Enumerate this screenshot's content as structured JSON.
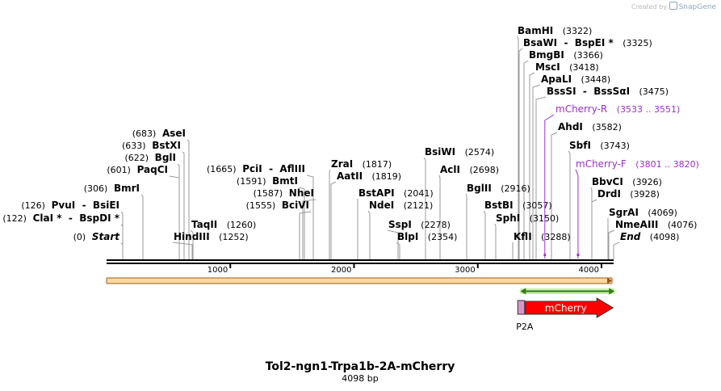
{
  "credit": {
    "prefix": "Created by",
    "brand": "SnapGene"
  },
  "title": "Tol2-ngn1-Trpa1b-2A-mCherry",
  "length_label": "4098 bp",
  "sequence_length": 4098,
  "ticks": [
    {
      "pos": 1000,
      "label": "1000"
    },
    {
      "pos": 2000,
      "label": "2000"
    },
    {
      "pos": 3000,
      "label": "3000"
    },
    {
      "pos": 4000,
      "label": "4000"
    }
  ],
  "colors": {
    "site_line": "#999999",
    "primer": "#9b30c8",
    "backbone_fill": "#f9d9a0",
    "backbone_line": "#a05a1a",
    "primer_bar": "#2e7d1e",
    "primer_bar_fill": "#c9f29a",
    "mcherry": "#ff0000",
    "p2a": "#d995c8"
  },
  "sites": [
    {
      "pos": 0,
      "names": [
        "Start"
      ],
      "coord": "(0)",
      "italic": true
    },
    {
      "pos": 122,
      "names": [
        "ClaI *",
        "BspDI *"
      ],
      "coord": "(122)"
    },
    {
      "pos": 126,
      "names": [
        "PvuI",
        "BsiEI"
      ],
      "coord": "(126)"
    },
    {
      "pos": 306,
      "names": [
        "BmrI"
      ],
      "coord": "(306)"
    },
    {
      "pos": 601,
      "names": [
        "PaqCI"
      ],
      "coord": "(601)"
    },
    {
      "pos": 622,
      "names": [
        "BglI"
      ],
      "coord": "(622)"
    },
    {
      "pos": 633,
      "names": [
        "BstXI"
      ],
      "coord": "(633)"
    },
    {
      "pos": 683,
      "names": [
        "AseI"
      ],
      "coord": "(683)"
    },
    {
      "pos": 1252,
      "names": [
        "HindIII"
      ],
      "coord": "(1252)"
    },
    {
      "pos": 1260,
      "names": [
        "TaqII"
      ],
      "coord": "(1260)"
    },
    {
      "pos": 1555,
      "names": [
        "BciVI"
      ],
      "coord": "(1555)"
    },
    {
      "pos": 1587,
      "names": [
        "NheI"
      ],
      "coord": "(1587)"
    },
    {
      "pos": 1591,
      "names": [
        "BmtI"
      ],
      "coord": "(1591)"
    },
    {
      "pos": 1665,
      "names": [
        "PciI",
        "AflIII"
      ],
      "coord": "(1665)"
    },
    {
      "pos": 1817,
      "names": [
        "ZraI"
      ],
      "coord": "(1817)"
    },
    {
      "pos": 1819,
      "names": [
        "AatII"
      ],
      "coord": "(1819)"
    },
    {
      "pos": 2041,
      "names": [
        "BstAPI"
      ],
      "coord": "(2041)"
    },
    {
      "pos": 2121,
      "names": [
        "NdeI"
      ],
      "coord": "(2121)"
    },
    {
      "pos": 2278,
      "names": [
        "SspI"
      ],
      "coord": "(2278)"
    },
    {
      "pos": 2354,
      "names": [
        "BlpI"
      ],
      "coord": "(2354)"
    },
    {
      "pos": 2574,
      "names": [
        "BsiWI"
      ],
      "coord": "(2574)"
    },
    {
      "pos": 2698,
      "names": [
        "AclI"
      ],
      "coord": "(2698)"
    },
    {
      "pos": 2916,
      "names": [
        "BglII"
      ],
      "coord": "(2916)"
    },
    {
      "pos": 3057,
      "names": [
        "BstBI"
      ],
      "coord": "(3057)"
    },
    {
      "pos": 3150,
      "names": [
        "SphI"
      ],
      "coord": "(3150)"
    },
    {
      "pos": 3288,
      "names": [
        "KflI"
      ],
      "coord": "(3288)"
    },
    {
      "pos": 3322,
      "names": [
        "BamHI"
      ],
      "coord": "(3322)"
    },
    {
      "pos": 3325,
      "names": [
        "BsaWI",
        "BspEI *"
      ],
      "coord": "(3325)"
    },
    {
      "pos": 3366,
      "names": [
        "BmgBI"
      ],
      "coord": "(3366)"
    },
    {
      "pos": 3418,
      "names": [
        "MscI"
      ],
      "coord": "(3418)"
    },
    {
      "pos": 3448,
      "names": [
        "ApaLI"
      ],
      "coord": "(3448)"
    },
    {
      "pos": 3475,
      "names": [
        "BssSI",
        "BssSαI"
      ],
      "coord": "(3475)"
    },
    {
      "pos": 3582,
      "names": [
        "AhdI"
      ],
      "coord": "(3582)"
    },
    {
      "pos": 3743,
      "names": [
        "SbfI"
      ],
      "coord": "(3743)"
    },
    {
      "pos": 3926,
      "names": [
        "BbvCI"
      ],
      "coord": "(3926)"
    },
    {
      "pos": 3928,
      "names": [
        "DrdI"
      ],
      "coord": "(3928)"
    },
    {
      "pos": 4069,
      "names": [
        "SgrAI"
      ],
      "coord": "(4069)"
    },
    {
      "pos": 4076,
      "names": [
        "NmeAIII"
      ],
      "coord": "(4076)"
    },
    {
      "pos": 4098,
      "names": [
        "End"
      ],
      "coord": "(4098)",
      "italic": true
    }
  ],
  "primers": [
    {
      "name": "mCherry-R",
      "coord": "(3533 .. 3551)",
      "start": 3533,
      "end": 3551
    },
    {
      "name": "mCherry-F",
      "coord": "(3801 .. 3820)",
      "start": 3801,
      "end": 3820
    }
  ],
  "features": [
    {
      "name": "P2A",
      "start": 3323,
      "end": 3379,
      "type": "box"
    },
    {
      "name": "mCherry",
      "start": 3383,
      "end": 4093,
      "type": "arrow"
    }
  ]
}
